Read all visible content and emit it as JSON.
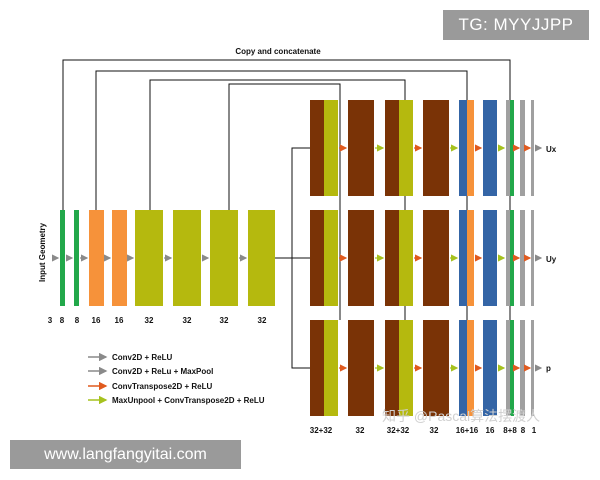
{
  "title": "Copy and concatenate",
  "input_label": "Input Geometry",
  "encoder_channels": [
    "3",
    "8",
    "8",
    "16",
    "16",
    "32",
    "32",
    "32",
    "32"
  ],
  "decoder_channels": [
    "32+32",
    "32",
    "32+32",
    "32",
    "16+16",
    "16",
    "8+8",
    "8",
    "1"
  ],
  "outputs": [
    "Ux",
    "Uy",
    "p"
  ],
  "legend": [
    {
      "label": "Conv2D + ReLU",
      "color": "#8a8a8a"
    },
    {
      "label": "Conv2D + ReLu + MaxPool",
      "color": "#8a8a8a"
    },
    {
      "label": "ConvTranspose2D + ReLU",
      "color": "#e05a1e"
    },
    {
      "label": "MaxUnpool + ConvTranspose2D + ReLU",
      "color": "#a6c21e"
    }
  ],
  "colors": {
    "green": "#22a84a",
    "orange": "#f6923a",
    "olive": "#b5b90e",
    "brown": "#7a3306",
    "blue": "#3465a6",
    "gray": "#a0a0a0",
    "arrow_gray": "#8a8a8a",
    "arrow_orange": "#e05a1e",
    "arrow_green": "#a6c21e"
  },
  "watermarks": {
    "top": "TG: MYYJJPP",
    "bottom": "www.langfangyitai.com",
    "zhihu": "知乎 @Pascal算法摆渡人"
  }
}
